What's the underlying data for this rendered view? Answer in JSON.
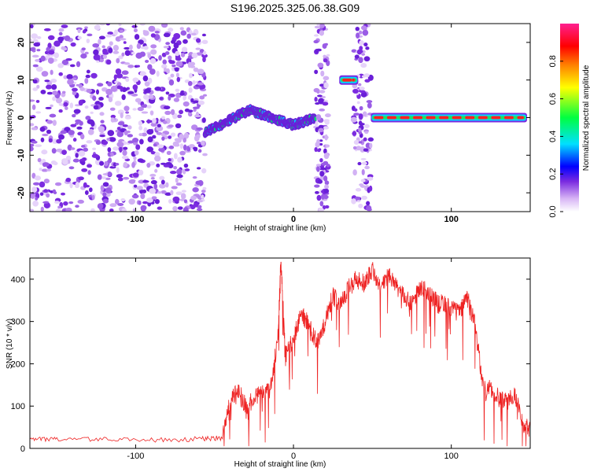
{
  "title": "S196.2025.325.06.38.G09",
  "chart_data": [
    {
      "type": "heatmap",
      "xlabel": "Height of straight line (km)",
      "ylabel": "Frequency (Hz)",
      "xlim": [
        -167,
        150
      ],
      "ylim": [
        -25,
        25
      ],
      "xticks": [
        "-100",
        "0",
        "100"
      ],
      "yticks": [
        "20",
        "10",
        "0",
        "-10",
        "-20"
      ],
      "colorbar": {
        "label": "Normalized spectral amplitude",
        "range": [
          0,
          1
        ],
        "ticks": [
          "0.0",
          "0.2",
          "0.4",
          "0.6",
          "0.8"
        ],
        "colors": [
          "#ffffff",
          "#d7b4f5",
          "#7b2be0",
          "#0000ff",
          "#00e0ff",
          "#00ff40",
          "#ffff00",
          "#ff8000",
          "#ff0000",
          "#ff2090"
        ]
      },
      "regions": [
        {
          "name": "noise",
          "x_range": [
            -167,
            -56
          ],
          "freq_range": [
            -25,
            25
          ]
        },
        {
          "name": "wandering-trace",
          "x_range": [
            -56,
            14
          ],
          "freq_approx": [
            -4,
            -1,
            2,
            0,
            -2,
            0
          ]
        },
        {
          "name": "noise-band",
          "x_range": [
            14,
            22
          ]
        },
        {
          "name": "noise-band",
          "x_range": [
            38,
            49
          ]
        },
        {
          "name": "tone-10hz",
          "x_range": [
            29,
            41
          ],
          "freq": 10
        },
        {
          "name": "tone-0hz",
          "x_range": [
            49,
            148
          ],
          "freq": 0
        }
      ]
    },
    {
      "type": "line",
      "xlabel": "Height of straight line (km)",
      "ylabel": "SNR (10 * v/v)",
      "xlim": [
        -167,
        150
      ],
      "ylim": [
        0,
        450
      ],
      "xticks": [
        "-100",
        "0",
        "100"
      ],
      "yticks": [
        "400",
        "300",
        "200",
        "100",
        "0"
      ],
      "color": "#ee2222",
      "series": [
        {
          "name": "SNR",
          "x": [
            -167,
            -150,
            -120,
            -90,
            -60,
            -45,
            -40,
            -35,
            -30,
            -25,
            -20,
            -15,
            -10,
            -8,
            -5,
            0,
            5,
            10,
            15,
            20,
            25,
            30,
            35,
            40,
            45,
            50,
            55,
            60,
            65,
            70,
            75,
            80,
            85,
            90,
            95,
            100,
            105,
            110,
            115,
            120,
            125,
            130,
            135,
            140,
            145,
            150
          ],
          "y": [
            25,
            20,
            22,
            20,
            22,
            25,
            110,
            140,
            95,
            120,
            130,
            140,
            250,
            440,
            220,
            260,
            320,
            290,
            250,
            300,
            360,
            340,
            380,
            400,
            390,
            420,
            380,
            410,
            380,
            360,
            340,
            380,
            370,
            350,
            340,
            330,
            320,
            360,
            290,
            150,
            140,
            120,
            110,
            130,
            60,
            40
          ]
        }
      ]
    }
  ]
}
